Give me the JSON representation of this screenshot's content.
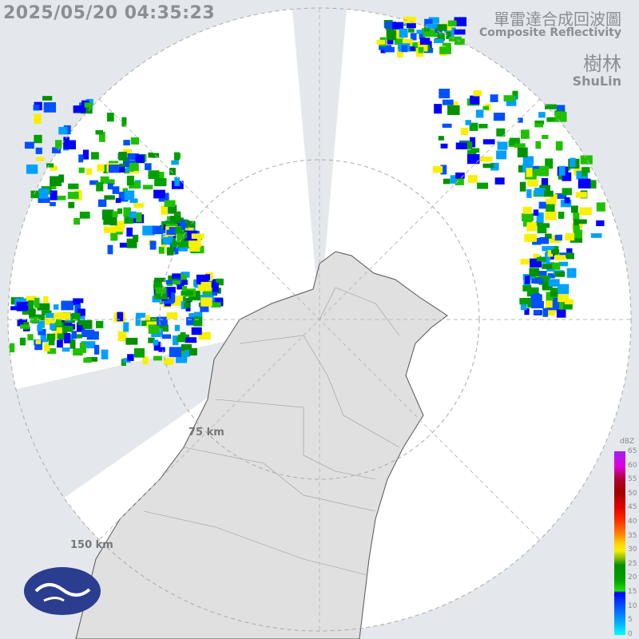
{
  "timestamp": "2025/05/20 04:35:23",
  "title_zh": "單雷達合成回波圖",
  "title_en": "Composite Reflectivity",
  "site_zh": "樹林",
  "site_en": "ShuLin",
  "range_labels": [
    "75 km",
    "150 km"
  ],
  "legend": {
    "unit": "dBZ",
    "ticks": [
      "65",
      "60",
      "55",
      "50",
      "45",
      "40",
      "35",
      "30",
      "25",
      "20",
      "15",
      "10",
      "5",
      "0"
    ]
  },
  "colors": {
    "background": "#e4e8ed",
    "radar_disk": "#ffffff",
    "land": "#e2e2e2",
    "logo": "#2b3d8f"
  }
}
